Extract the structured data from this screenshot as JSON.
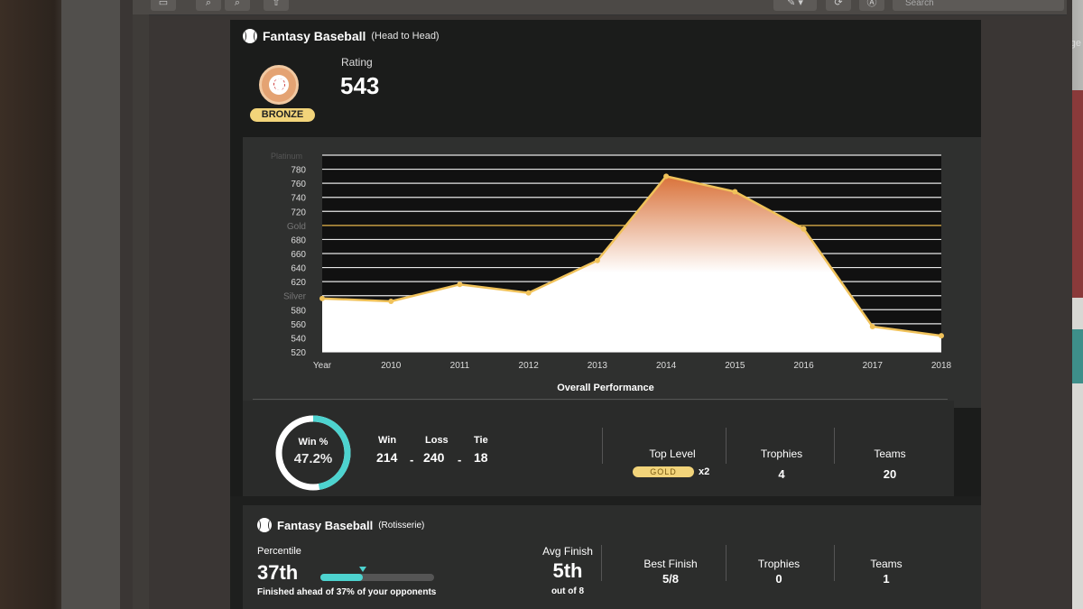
{
  "toolbar": {
    "search_placeholder": "Search"
  },
  "room": {
    "partial_text": "ge"
  },
  "head_to_head": {
    "title": "Fantasy Baseball",
    "mode": "(Head to Head)",
    "badge_tier": "BRONZE",
    "rating_label": "Rating",
    "rating_value": "543",
    "performance_title": "Overall Performance",
    "win_pct_label": "Win %",
    "win_pct_value": "47.2%",
    "win_pct_fraction": 0.472,
    "record": {
      "win_label": "Win",
      "loss_label": "Loss",
      "tie_label": "Tie",
      "win": "214",
      "loss": "240",
      "tie": "18",
      "separator": "-"
    },
    "top_level_label": "Top Level",
    "top_level_value": "GOLD",
    "top_level_multiplier": "x2",
    "trophies_label": "Trophies",
    "trophies_value": "4",
    "teams_label": "Teams",
    "teams_value": "20"
  },
  "rotisserie": {
    "title": "Fantasy Baseball",
    "mode": "(Rotisserie)",
    "percentile_label": "Percentile",
    "percentile_value": "37th",
    "percentile_fraction": 0.37,
    "percentile_note": "Finished ahead of 37% of your opponents",
    "avg_finish_label": "Avg Finish",
    "avg_finish_value": "5th",
    "avg_finish_sub": "out of 8",
    "best_finish_label": "Best Finish",
    "best_finish_value": "5/8",
    "trophies_label": "Trophies",
    "trophies_value": "0",
    "teams_label": "Teams",
    "teams_value": "1"
  },
  "chart_data": {
    "type": "area",
    "x": [
      "Year",
      "2010",
      "2011",
      "2012",
      "2013",
      "2014",
      "2015",
      "2016",
      "2017",
      "2018"
    ],
    "values": [
      596,
      592,
      616,
      604,
      650,
      770,
      748,
      695,
      556,
      543
    ],
    "ylim": [
      520,
      800
    ],
    "yticks": [
      520,
      540,
      560,
      580,
      600,
      620,
      640,
      660,
      680,
      700,
      720,
      740,
      760,
      780
    ],
    "ytick_labels": [
      "520",
      "540",
      "560",
      "580",
      "Silver",
      "620",
      "640",
      "660",
      "680",
      "Gold",
      "720",
      "740",
      "760",
      "780"
    ],
    "top_label": "Platinum",
    "grid": true,
    "colors": {
      "line": "#f0c25a",
      "fill_top": "#d9723a",
      "fill_bottom": "#ffffff",
      "gold_line": "#e8b84b"
    }
  },
  "colors": {
    "accent": "#4dd3cf",
    "gold": "#f2d47a",
    "bronze": "#e4a373"
  }
}
